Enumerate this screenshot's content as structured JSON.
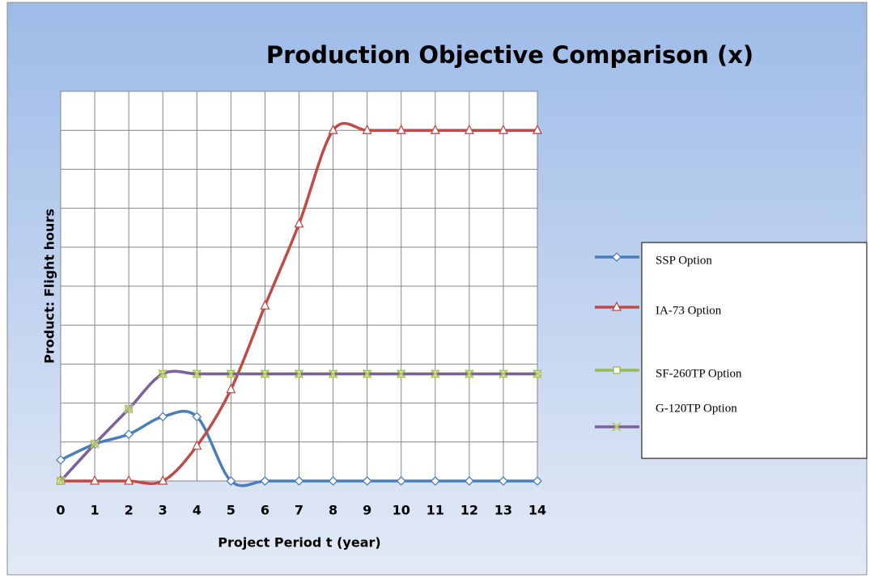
{
  "chart_data": {
    "type": "line",
    "title": "Production  Objective Comparison (x)",
    "x_label": "Project Period t (year)",
    "y_label": "Product: Flight  hours",
    "x": [
      0,
      1,
      2,
      3,
      4,
      5,
      6,
      7,
      8,
      9,
      10,
      11,
      12,
      13,
      14
    ],
    "xlim": [
      0,
      14
    ],
    "xticks": [
      0,
      1,
      2,
      3,
      4,
      5,
      6,
      7,
      8,
      9,
      10,
      11,
      12,
      13,
      14
    ],
    "ylim": [
      0,
      10
    ],
    "yticks": [
      0,
      1,
      2,
      3,
      4,
      5,
      6,
      7,
      8,
      9,
      10
    ],
    "grid": true,
    "legend": "right",
    "smooth": true,
    "series": [
      {
        "name": "SSP Option",
        "color": "#4a7ebb",
        "marker": "diamond",
        "values": [
          0.54,
          0.95,
          1.2,
          1.65,
          1.65,
          0,
          0,
          0,
          0,
          0,
          0,
          0,
          0,
          0,
          0
        ]
      },
      {
        "name": "IA-73 Option",
        "color": "#be4b48",
        "marker": "triangle",
        "values": [
          0,
          0,
          0,
          0,
          0.9,
          2.35,
          4.5,
          6.6,
          9,
          9,
          9,
          9,
          9,
          9,
          9
        ]
      },
      {
        "name": "SF-260TP Option",
        "color": "#98b954",
        "marker": "square",
        "values": [
          0,
          0.95,
          1.85,
          2.75,
          2.75,
          2.75,
          2.75,
          2.75,
          2.75,
          2.75,
          2.75,
          2.75,
          2.75,
          2.75,
          2.75
        ]
      },
      {
        "name": "G-120TP Option",
        "color": "#7d60a0",
        "marker": "x",
        "values": [
          0,
          0.95,
          1.85,
          2.75,
          2.75,
          2.75,
          2.75,
          2.75,
          2.75,
          2.75,
          2.75,
          2.75,
          2.75,
          2.75,
          2.75
        ]
      }
    ]
  }
}
